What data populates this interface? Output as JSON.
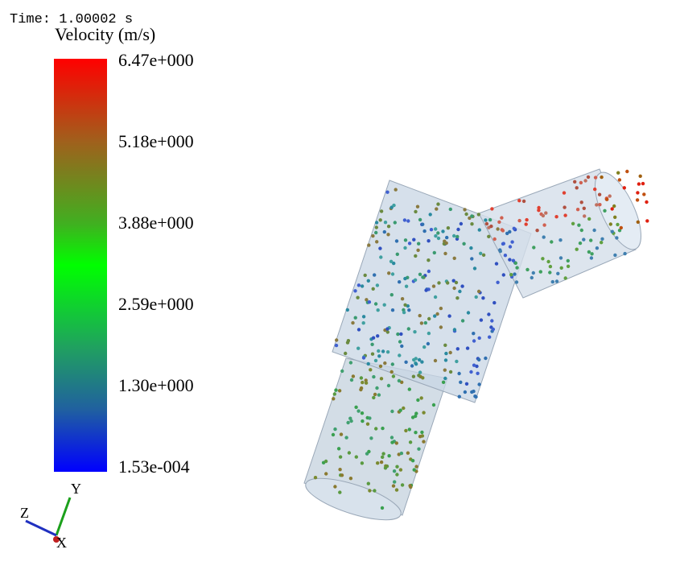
{
  "time_label": "Time: 1.00002 s",
  "colorbar": {
    "title": "Velocity (m/s)",
    "labels": [
      "6.47e+000",
      "5.18e+000",
      "3.88e+000",
      "2.59e+000",
      "1.30e+000",
      "1.53e-004"
    ]
  },
  "axes": {
    "y": "Y",
    "z": "Z",
    "x": "X"
  }
}
